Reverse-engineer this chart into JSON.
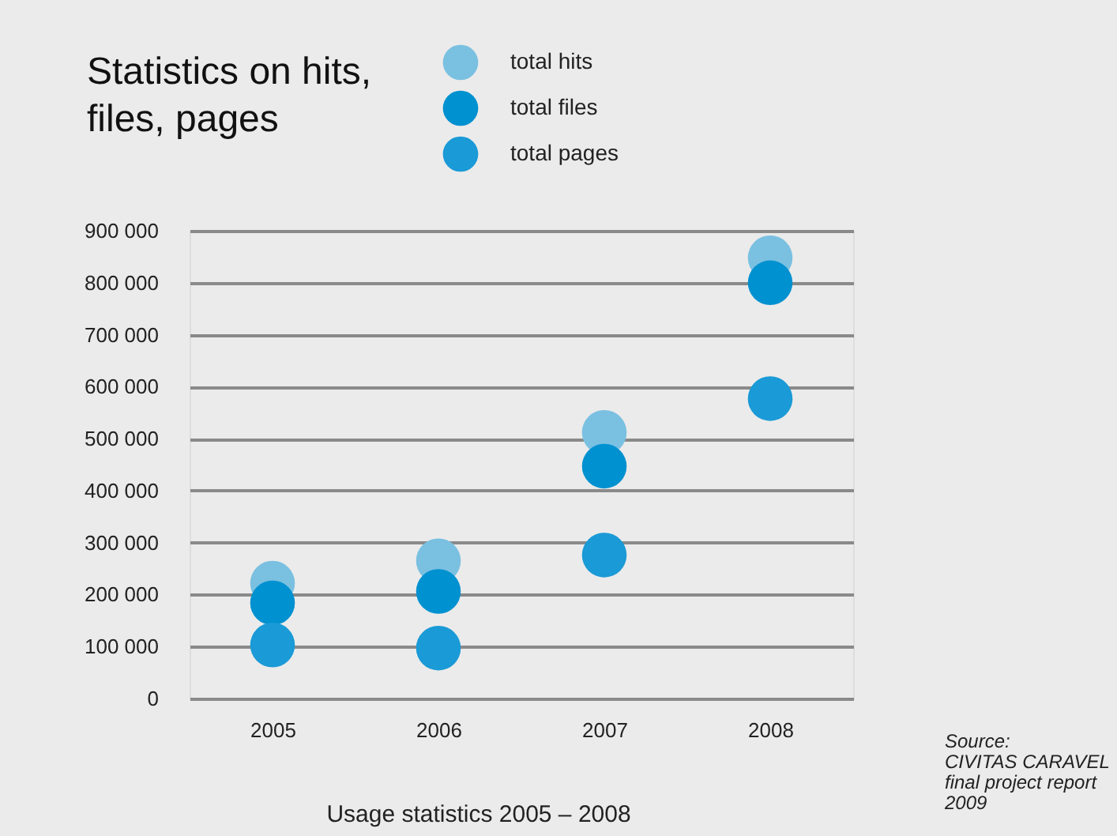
{
  "chart_data": {
    "type": "scatter",
    "title": "Statistics on hits,\nfiles, pages",
    "categories": [
      "2005",
      "2006",
      "2007",
      "2008"
    ],
    "series": [
      {
        "name": "total hits",
        "color": "#7ac0e1",
        "values": [
          222000,
          265000,
          512000,
          848000
        ]
      },
      {
        "name": "total files",
        "color": "#0091d0",
        "values": [
          184000,
          206000,
          447000,
          800000
        ]
      },
      {
        "name": "total pages",
        "color": "#1a9ad6",
        "values": [
          103000,
          97000,
          276000,
          577000
        ]
      }
    ],
    "ylim": [
      0,
      900000
    ],
    "yticks": [
      {
        "value": 0,
        "label": "0"
      },
      {
        "value": 100000,
        "label": "100 000"
      },
      {
        "value": 200000,
        "label": "200 000"
      },
      {
        "value": 300000,
        "label": "300 000"
      },
      {
        "value": 400000,
        "label": "400 000"
      },
      {
        "value": 500000,
        "label": "500 000"
      },
      {
        "value": 600000,
        "label": "600 000"
      },
      {
        "value": 700000,
        "label": "700 000"
      },
      {
        "value": 800000,
        "label": "800 000"
      },
      {
        "value": 900000,
        "label": "900 000"
      }
    ],
    "grid": "y",
    "legend": "top",
    "marker": "circle",
    "annotations": [
      "Usage statistics 2005 – 2008",
      "Source:\nCIVITAS CARAVEL\nfinal project report\n2009"
    ]
  }
}
